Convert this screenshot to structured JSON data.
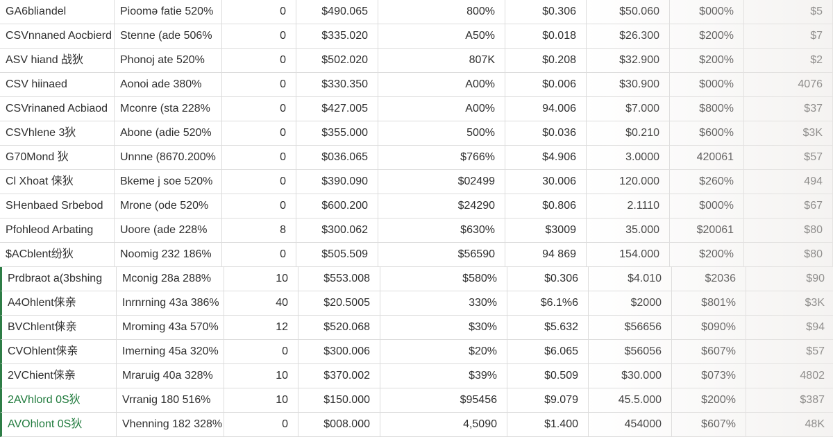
{
  "table": {
    "rows": [
      [
        "GA6bliandel",
        "Pioomə fatie 520%",
        "0",
        "$490.065",
        "800%",
        "$0.306",
        "$50.060",
        "$000%",
        "$5"
      ],
      [
        "CSVnnaned Aocbierd",
        "Stenne (ade 506%",
        "0",
        "$335.020",
        "A50%",
        "$0.018",
        "$26.300",
        "$200%",
        "$7"
      ],
      [
        "ASV hiand 战狄",
        "Phonoj ate 520%",
        "0",
        "$502.020",
        "807K",
        "$0.208",
        "$32.900",
        "$200%",
        "$2"
      ],
      [
        "CSV hiinaed",
        "Aonoi ade 380%",
        "0",
        "$330.350",
        "A00%",
        "$0.006",
        "$30.900",
        "$000%",
        "4076"
      ],
      [
        "CSVrinaned Acbiaod",
        "Mconre (sta 228%",
        "0",
        "$427.005",
        "A00%",
        "94.006",
        "$7.000",
        "$800%",
        "$37"
      ],
      [
        "CSVhlene 3狄",
        "Abone (adie 520%",
        "0",
        "$355.000",
        "500%",
        "$0.036",
        "$0.210",
        "$600%",
        "$3K"
      ],
      [
        "G70Mond 狄",
        "Unnne (8670.200%",
        "0",
        "$036.065",
        "$766%",
        "$4.906",
        "3.0000",
        "420061",
        "$57"
      ],
      [
        "Cl Xhoat 俫狄",
        "Bkeme j soe 520%",
        "0",
        "$390.090",
        "$02499",
        "30.006",
        "120.000",
        "$260%",
        "494"
      ],
      [
        "SHenbaed Srbebod",
        "Mrone (ode 520%",
        "0",
        "$600.200",
        "$24290",
        "$0.806",
        "2.1110",
        "$000%",
        "$67"
      ],
      [
        "Pfohleod Arbating",
        "Uoore (ade 228%",
        "8",
        "$300.062",
        "$630%",
        "$3009",
        "35.000",
        "$20061",
        "$80"
      ],
      [
        "$ACblent纷狄",
        "Noomig 232 186%",
        "0",
        "$505.509",
        "$56590",
        "94 869",
        "154.000",
        "$200%",
        "$80"
      ],
      [
        "Prdbraot a(3bshing",
        "Mconig 28a 288%",
        "10",
        "$553.008",
        "$580%",
        "$0.306",
        "$4.010",
        "$2036",
        "$90"
      ],
      [
        "A4Ohlent俫亲",
        "Inrnrning 43a 386%",
        "40",
        "$20.5005",
        "330%",
        "$6.1%6",
        "$2000",
        "$801%",
        "$3K"
      ],
      [
        "BVChlent俫亲",
        "Mroming 43a 570%",
        "12",
        "$520.068",
        "$30%",
        "$5.632",
        "$56656",
        "$090%",
        "$94"
      ],
      [
        "CVOhlent俫亲",
        "Imerning 45a 320%",
        "0",
        "$300.006",
        "$20%",
        "$6.065",
        "$56056",
        "$607%",
        "$57"
      ],
      [
        "2VChient俫亲",
        "Mraruig 40a 328%",
        "10",
        "$370.002",
        "$39%",
        "$0.509",
        "$30.000",
        "$073%",
        "4802"
      ],
      [
        "2AVhlord 0S狄",
        "Vrranig 180 516%",
        "10",
        "$150.000",
        "$95456",
        "$9.079",
        "45.5.000",
        "$200%",
        "$387"
      ],
      [
        "AVOhlont 0S狄",
        "Vhenning 182 328%",
        "0",
        "$008.000",
        "4,5090",
        "$1.400",
        "454000",
        "$607%",
        "48K"
      ]
    ]
  }
}
